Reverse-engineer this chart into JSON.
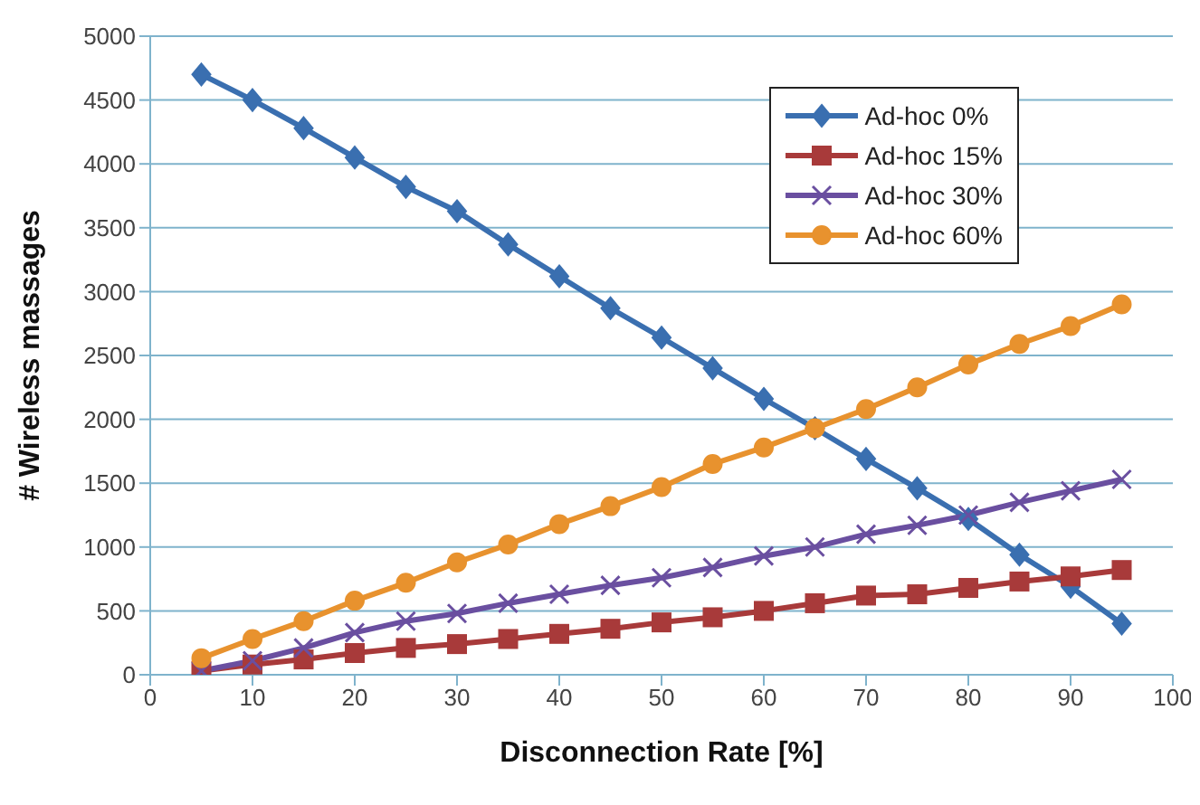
{
  "chart_data": {
    "type": "line",
    "xlabel": "Disconnection Rate [%]",
    "ylabel": "# Wireless massages",
    "x": [
      5,
      10,
      15,
      20,
      25,
      30,
      35,
      40,
      45,
      50,
      55,
      60,
      65,
      70,
      75,
      80,
      85,
      90,
      95
    ],
    "series": [
      {
        "name": "Ad-hoc 0%",
        "color": "#3a6fb0",
        "marker": "diamond",
        "values": [
          4700,
          4500,
          4280,
          4050,
          3820,
          3630,
          3370,
          3120,
          2870,
          2640,
          2400,
          2160,
          1930,
          1690,
          1460,
          1220,
          940,
          690,
          400
        ]
      },
      {
        "name": "Ad-hoc 15%",
        "color": "#a83a3a",
        "marker": "square",
        "values": [
          30,
          80,
          120,
          170,
          210,
          240,
          280,
          320,
          360,
          410,
          450,
          500,
          560,
          620,
          630,
          680,
          730,
          770,
          820
        ]
      },
      {
        "name": "Ad-hoc 30%",
        "color": "#6a4fa0",
        "marker": "cross",
        "values": [
          30,
          110,
          210,
          330,
          420,
          480,
          560,
          630,
          700,
          760,
          840,
          930,
          1000,
          1100,
          1170,
          1250,
          1350,
          1440,
          1530
        ]
      },
      {
        "name": "Ad-hoc 60%",
        "color": "#e8922e",
        "marker": "circle",
        "values": [
          130,
          280,
          420,
          580,
          720,
          880,
          1020,
          1180,
          1320,
          1470,
          1650,
          1780,
          1930,
          2080,
          2250,
          2430,
          2590,
          2730,
          2900
        ]
      }
    ],
    "xlim": [
      0,
      100
    ],
    "xticks": [
      0,
      10,
      20,
      30,
      40,
      50,
      60,
      70,
      80,
      90,
      100
    ],
    "ylim": [
      0,
      5000
    ],
    "yticks": [
      0,
      500,
      1000,
      1500,
      2000,
      2500,
      3000,
      3500,
      4000,
      4500,
      5000
    ],
    "grid": "y",
    "legend": "top right"
  }
}
